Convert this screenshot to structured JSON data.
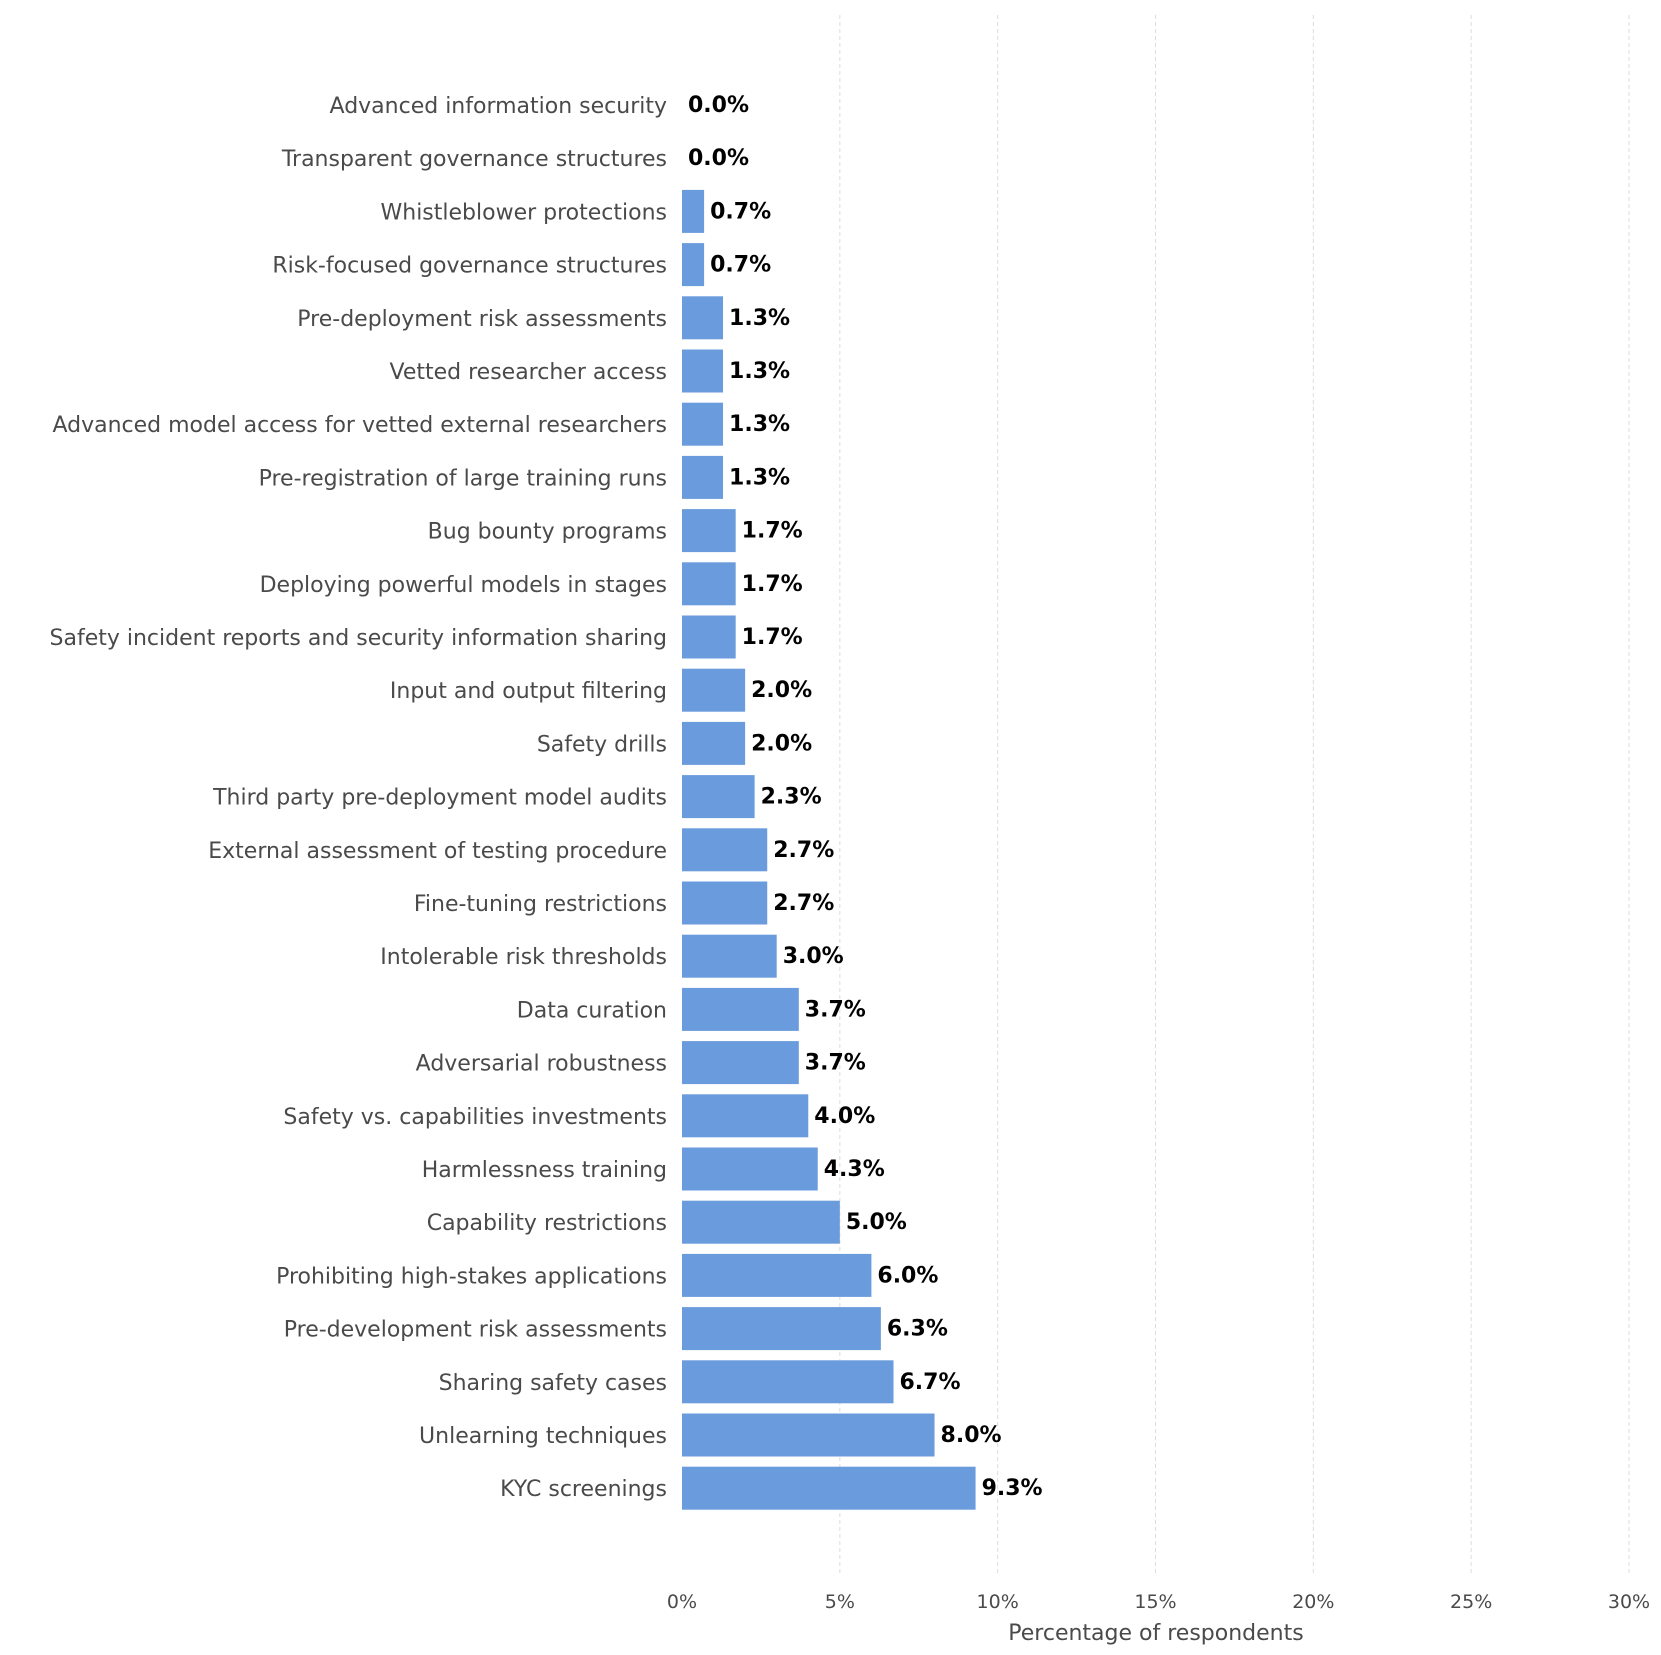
{
  "chart_data": {
    "type": "bar",
    "orientation": "horizontal",
    "categories": [
      "Advanced information security",
      "Transparent governance structures",
      "Whistleblower protections",
      "Risk-focused governance structures",
      "Pre-deployment risk assessments",
      "Vetted researcher access",
      "Advanced model access for vetted external researchers",
      "Pre-registration of large training runs",
      "Bug bounty programs",
      "Deploying powerful models in stages",
      "Safety incident reports and security information sharing",
      "Input and output filtering",
      "Safety drills",
      "Third party pre-deployment model audits",
      "External assessment of testing procedure",
      "Fine-tuning restrictions",
      "Intolerable risk thresholds",
      "Data curation",
      "Adversarial robustness",
      "Safety vs. capabilities investments",
      "Harmlessness training",
      "Capability restrictions",
      "Prohibiting high-stakes applications",
      "Pre-development risk assessments",
      "Sharing safety cases",
      "Unlearning techniques",
      "KYC screenings"
    ],
    "values": [
      0.0,
      0.0,
      0.7,
      0.7,
      1.3,
      1.3,
      1.3,
      1.3,
      1.7,
      1.7,
      1.7,
      2.0,
      2.0,
      2.3,
      2.7,
      2.7,
      3.0,
      3.7,
      3.7,
      4.0,
      4.3,
      5.0,
      6.0,
      6.3,
      6.7,
      8.0,
      9.3
    ],
    "value_labels": [
      "0.0%",
      "0.0%",
      "0.7%",
      "0.7%",
      "1.3%",
      "1.3%",
      "1.3%",
      "1.3%",
      "1.7%",
      "1.7%",
      "1.7%",
      "2.0%",
      "2.0%",
      "2.3%",
      "2.7%",
      "2.7%",
      "3.0%",
      "3.7%",
      "3.7%",
      "4.0%",
      "4.3%",
      "5.0%",
      "6.0%",
      "6.3%",
      "6.7%",
      "8.0%",
      "9.3%"
    ],
    "xlabel": "Percentage of respondents",
    "xlim": [
      0,
      30
    ],
    "xticks": [
      0,
      5,
      10,
      15,
      20,
      25,
      30
    ],
    "xtick_labels": [
      "0%",
      "5%",
      "10%",
      "15%",
      "20%",
      "25%",
      "30%"
    ],
    "grid": "vertical dashed",
    "bar_color": "#6a9bdc"
  }
}
